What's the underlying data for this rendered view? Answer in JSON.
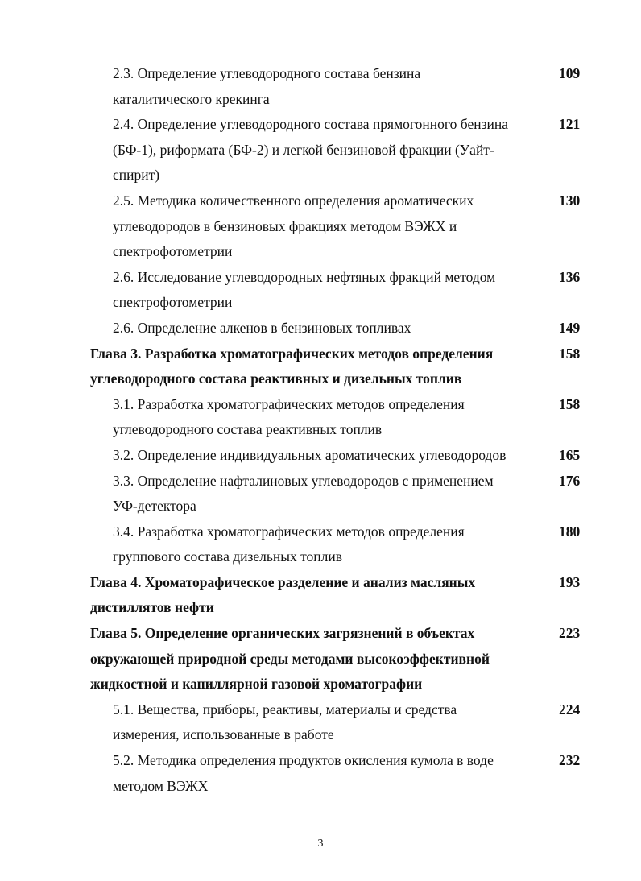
{
  "toc": [
    {
      "kind": "sub",
      "lines": [
        "2.3. Определение углеводородного состава бензина",
        "каталитического крекинга"
      ],
      "page": "109"
    },
    {
      "kind": "sub",
      "lines": [
        "2.4. Определение углеводородного состава прямогонного бензина",
        "(БФ-1), риформата (БФ-2) и легкой бензиновой фракции (Уайт-",
        "спирит)"
      ],
      "page": "121"
    },
    {
      "kind": "sub",
      "lines": [
        "2.5. Методика количественного определения ароматических",
        "углеводородов в бензиновых фракциях методом ВЭЖХ и",
        "спектрофотометрии"
      ],
      "page": "130"
    },
    {
      "kind": "sub",
      "lines": [
        "2.6. Исследование углеводородных нефтяных фракций методом",
        "спектрофотометрии"
      ],
      "page": "136"
    },
    {
      "kind": "sub",
      "lines": [
        "2.6. Определение алкенов в бензиновых топливах"
      ],
      "page": "149"
    },
    {
      "kind": "chap",
      "lines": [
        "Глава 3. Разработка хроматографических методов определения",
        "углеводородного состава реактивных и дизельных  топлив"
      ],
      "page": "158"
    },
    {
      "kind": "sub",
      "lines": [
        "3.1. Разработка хроматографических методов определения",
        "углеводородного состава реактивных топлив"
      ],
      "page": "158"
    },
    {
      "kind": "sub",
      "lines": [
        "3.2. Определение индивидуальных ароматических углеводородов"
      ],
      "page": "165"
    },
    {
      "kind": "sub",
      "lines": [
        "3.3. Определение нафталиновых углеводородов с применением",
        "УФ-детектора"
      ],
      "page": "176"
    },
    {
      "kind": "sub",
      "lines": [
        "3.4. Разработка хроматографических методов определения",
        "группового состава дизельных топлив"
      ],
      "page": "180"
    },
    {
      "kind": "chap",
      "lines": [
        "Глава 4. Хроматорафическое разделение и анализ масляных",
        "дистиллятов нефти"
      ],
      "page": "193"
    },
    {
      "kind": "chap",
      "lines": [
        "Глава 5. Определение органических загрязнений в объектах",
        "окружающей природной среды методами высокоэффективной",
        "жидкостной и капиллярной газовой хроматографии"
      ],
      "page": "223"
    },
    {
      "kind": "sub",
      "lines": [
        "5.1. Вещества, приборы, реактивы, материалы и средства",
        "измерения, использованные в работе"
      ],
      "page": "224"
    },
    {
      "kind": "sub",
      "lines": [
        "5.2. Методика определения продуктов окисления кумола в воде",
        "методом ВЭЖХ"
      ],
      "page": "232"
    }
  ],
  "page_number": "3"
}
